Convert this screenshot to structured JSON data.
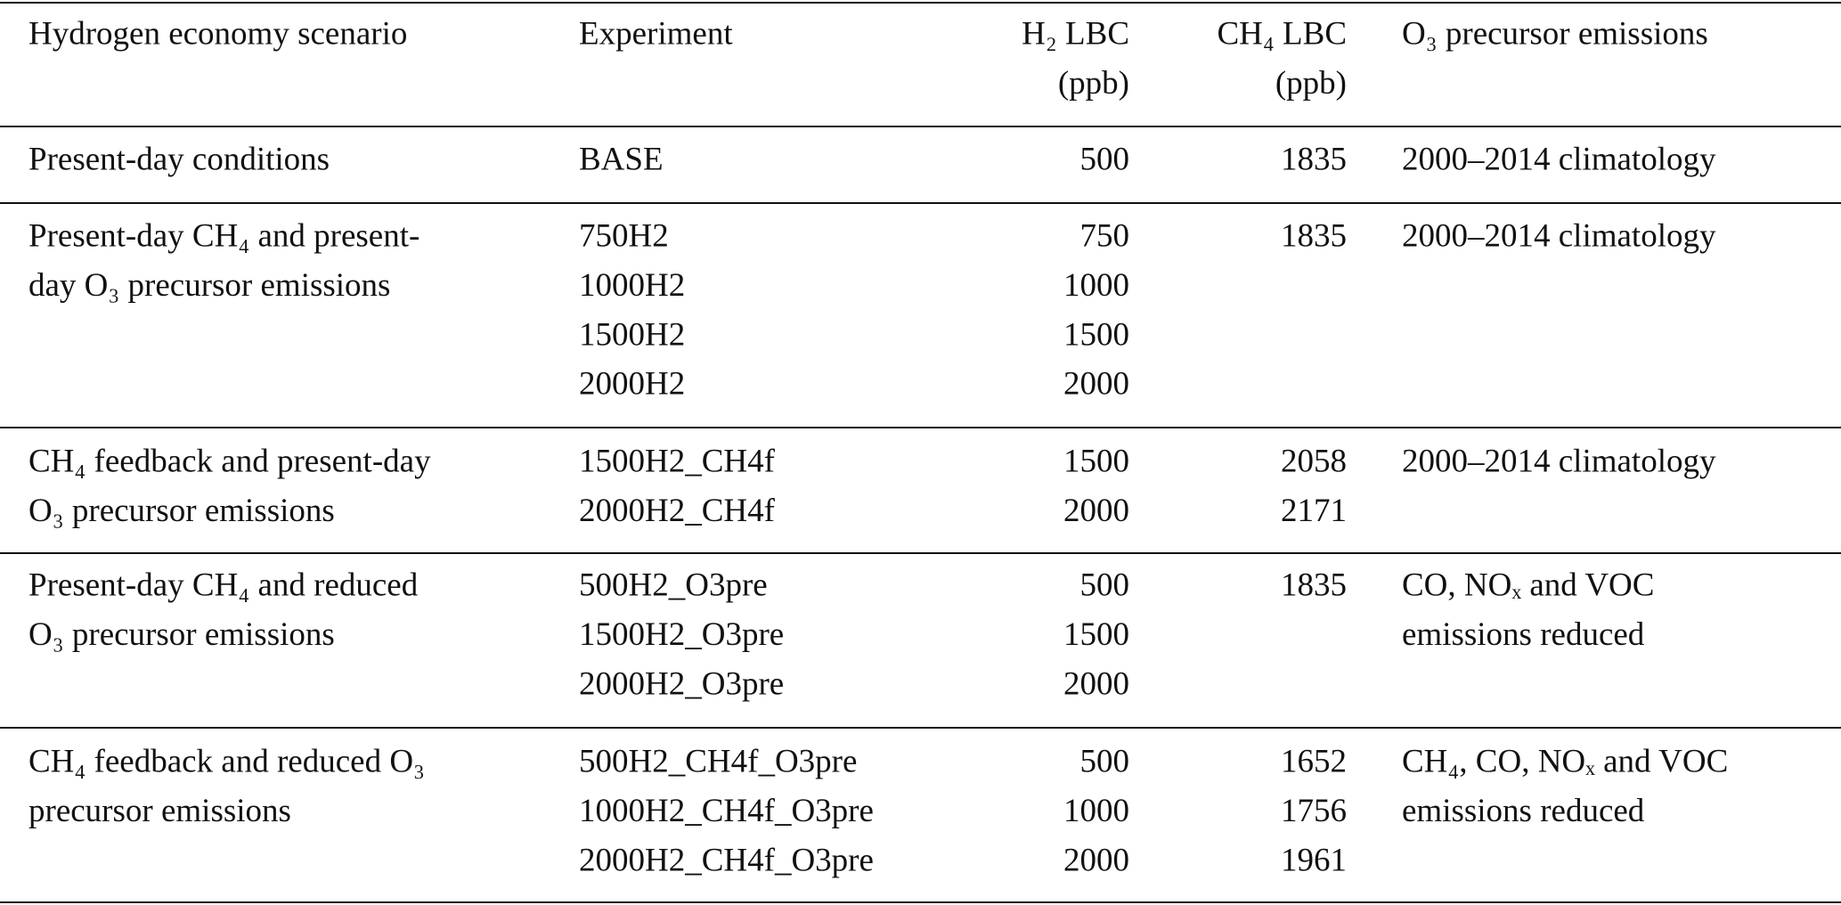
{
  "table": {
    "header": {
      "scenario": [
        "Hydrogen economy scenario"
      ],
      "experiment": [
        "Experiment"
      ],
      "h2": [
        "H₂ LBC",
        "(ppb)"
      ],
      "ch4": [
        "CH₄ LBC",
        "(ppb)"
      ],
      "o3": [
        "O₃ precursor emissions"
      ]
    },
    "rows": [
      {
        "scenario": [
          "Present-day conditions"
        ],
        "experiment": [
          "BASE"
        ],
        "h2": [
          500
        ],
        "ch4": [
          1835
        ],
        "o3": [
          "2000–2014 climatology"
        ]
      },
      {
        "scenario": [
          "Present-day CH₄ and present-",
          "day O₃ precursor emissions"
        ],
        "experiment": [
          "750H2",
          "1000H2",
          "1500H2",
          "2000H2"
        ],
        "h2": [
          750,
          1000,
          1500,
          2000
        ],
        "ch4": [
          1835
        ],
        "o3": [
          "2000–2014 climatology"
        ]
      },
      {
        "scenario": [
          "CH₄ feedback and present-day",
          "O₃ precursor emissions"
        ],
        "experiment": [
          "1500H2_CH4f",
          "2000H2_CH4f"
        ],
        "h2": [
          1500,
          2000
        ],
        "ch4": [
          2058,
          2171
        ],
        "o3": [
          "2000–2014 climatology"
        ]
      },
      {
        "scenario": [
          "Present-day CH₄ and reduced",
          "O₃ precursor emissions"
        ],
        "experiment": [
          "500H2_O3pre",
          "1500H2_O3pre",
          "2000H2_O3pre"
        ],
        "h2": [
          500,
          1500,
          2000
        ],
        "ch4": [
          1835
        ],
        "o3": [
          "CO, NOₓ and VOC",
          "emissions reduced"
        ]
      },
      {
        "scenario": [
          "CH₄ feedback and reduced O₃",
          "precursor emissions"
        ],
        "experiment": [
          "500H2_CH4f_O3pre",
          "1000H2_CH4f_O3pre",
          "2000H2_CH4f_O3pre"
        ],
        "h2": [
          500,
          1000,
          2000
        ],
        "ch4": [
          1652,
          1756,
          1961
        ],
        "o3": [
          "CH₄, CO, NOₓ and VOC",
          "emissions reduced"
        ]
      }
    ]
  }
}
